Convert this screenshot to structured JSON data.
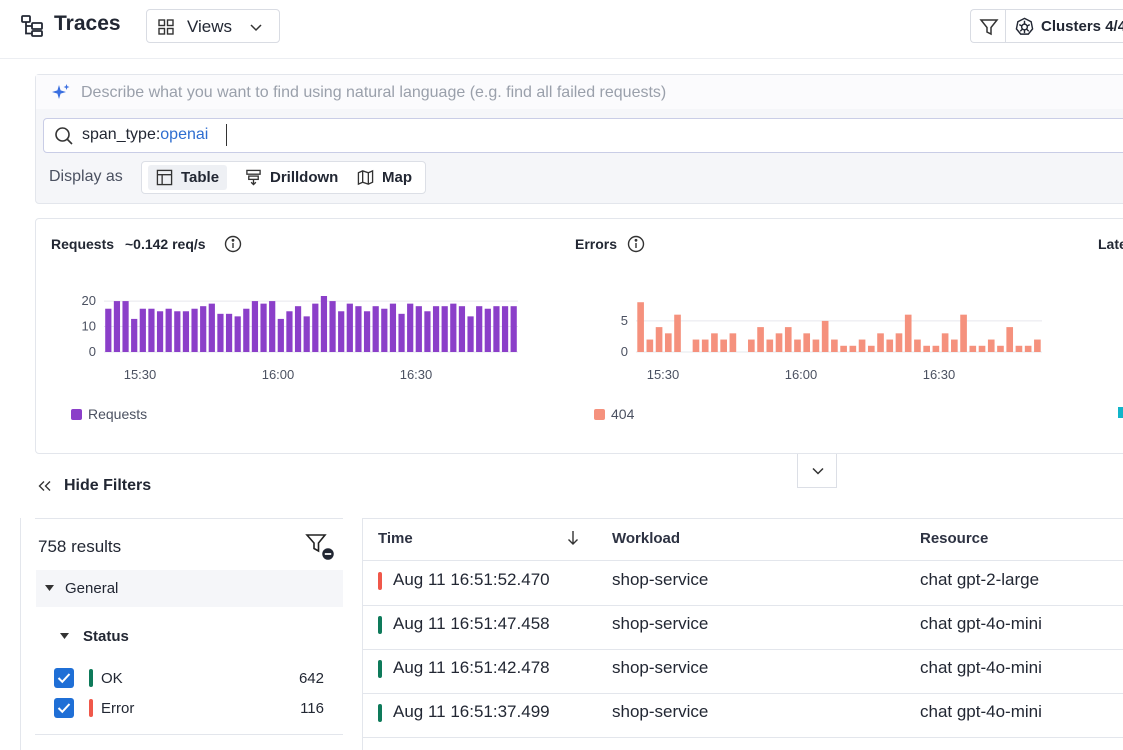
{
  "header": {
    "title": "Traces",
    "views_label": "Views",
    "clusters_label": "Clusters 4/4"
  },
  "query": {
    "ai_placeholder": "Describe what you want to find using natural language (e.g. find all failed requests)",
    "search_key": "span_type:",
    "search_value": "openai",
    "display_as_label": "Display as",
    "display_options": [
      "Table",
      "Drilldown",
      "Map"
    ],
    "active_display": "Table"
  },
  "charts": {
    "requests": {
      "title": "Requests",
      "rate": "~0.142 req/s",
      "legend": "Requests",
      "color": "#8b3fc9"
    },
    "errors": {
      "title": "Errors",
      "legend": "404",
      "color": "#f5917d"
    },
    "third_title_partial": "Late",
    "third_legend_color": "#12b5c9"
  },
  "chart_data": [
    {
      "type": "bar",
      "title": "Requests",
      "x_ticks": [
        "15:30",
        "16:00",
        "16:30"
      ],
      "y_ticks": [
        "0",
        "10",
        "20"
      ],
      "ylim": [
        0,
        22
      ],
      "grid": true,
      "values": [
        17,
        20,
        20,
        13,
        17,
        17,
        16,
        17,
        16,
        16,
        17,
        18,
        19,
        15,
        15,
        14,
        17,
        20,
        19,
        20,
        13,
        16,
        18,
        14,
        19,
        22,
        20,
        16,
        19,
        18,
        16,
        18,
        17,
        19,
        15,
        19,
        18,
        16,
        18,
        18,
        19,
        18,
        14,
        18,
        17,
        18,
        18,
        18
      ]
    },
    {
      "type": "bar",
      "title": "Errors",
      "x_ticks": [
        "15:30",
        "16:00",
        "16:30"
      ],
      "y_ticks": [
        "0",
        "5"
      ],
      "ylim": [
        0,
        9
      ],
      "grid": true,
      "series_name": "404",
      "values": [
        8,
        2,
        4,
        3,
        6,
        0,
        2,
        2,
        3,
        2,
        3,
        0,
        2,
        4,
        2,
        3,
        4,
        2,
        3,
        2,
        5,
        2,
        1,
        1,
        2,
        1,
        3,
        2,
        3,
        6,
        2,
        1,
        1,
        3,
        2,
        6,
        1,
        1,
        2,
        1,
        4,
        1,
        1,
        2
      ]
    }
  ],
  "filters": {
    "hide_label": "Hide Filters",
    "results": "758 results",
    "general_label": "General",
    "status_label": "Status",
    "items": [
      {
        "name": "OK",
        "count": "642",
        "color": "#0e7a5a"
      },
      {
        "name": "Error",
        "count": "116",
        "color": "#f0584a"
      }
    ]
  },
  "table": {
    "columns": [
      "Time",
      "Workload",
      "Resource"
    ],
    "rows": [
      {
        "time": "Aug 11 16:51:52.470",
        "workload": "shop-service",
        "resource": "chat gpt-2-large",
        "status": "error"
      },
      {
        "time": "Aug 11 16:51:47.458",
        "workload": "shop-service",
        "resource": "chat gpt-4o-mini",
        "status": "ok"
      },
      {
        "time": "Aug 11 16:51:42.478",
        "workload": "shop-service",
        "resource": "chat gpt-4o-mini",
        "status": "ok"
      },
      {
        "time": "Aug 11 16:51:37.499",
        "workload": "shop-service",
        "resource": "chat gpt-4o-mini",
        "status": "ok"
      }
    ],
    "status_colors": {
      "ok": "#0e7a5a",
      "error": "#f0584a"
    }
  }
}
